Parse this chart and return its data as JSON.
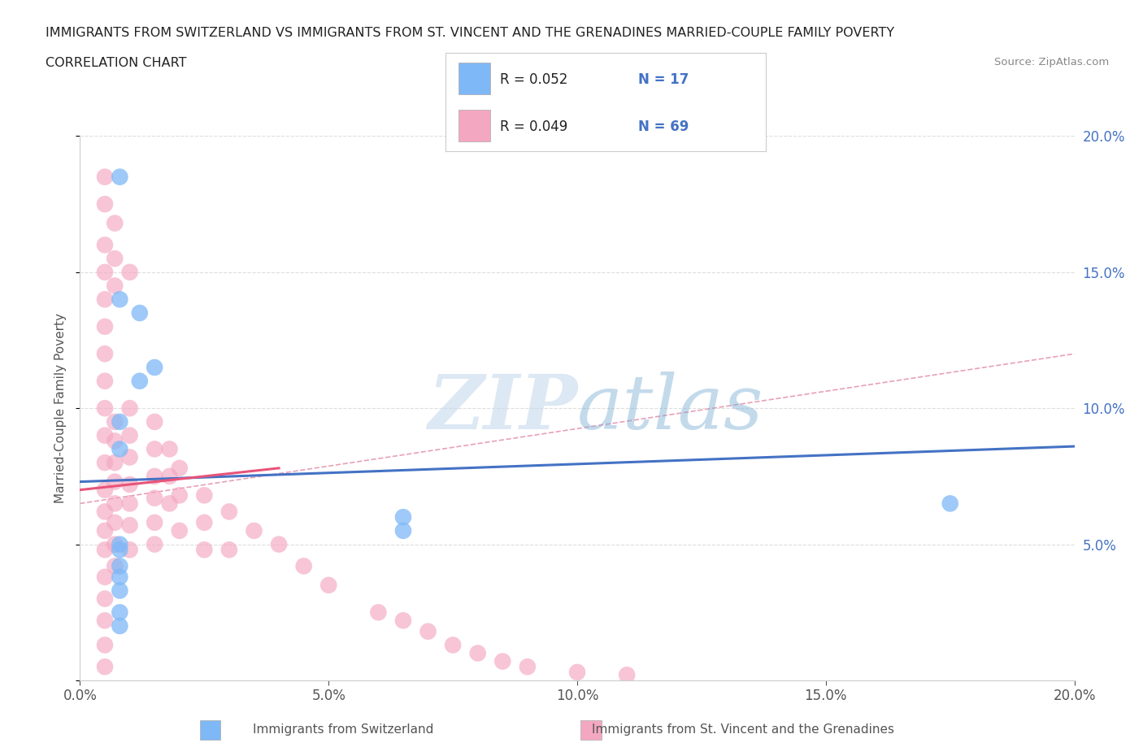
{
  "title_line1": "IMMIGRANTS FROM SWITZERLAND VS IMMIGRANTS FROM ST. VINCENT AND THE GRENADINES MARRIED-COUPLE FAMILY POVERTY",
  "title_line2": "CORRELATION CHART",
  "source_text": "Source: ZipAtlas.com",
  "ylabel": "Married-Couple Family Poverty",
  "xlim": [
    0.0,
    0.2
  ],
  "ylim": [
    0.0,
    0.2
  ],
  "xtick_vals": [
    0.0,
    0.05,
    0.1,
    0.15,
    0.2
  ],
  "xtick_labels": [
    "0.0%",
    "5.0%",
    "10.0%",
    "15.0%",
    "20.0%"
  ],
  "ytick_vals": [
    0.0,
    0.05,
    0.1,
    0.15,
    0.2
  ],
  "ytick_labels": [
    "",
    "5.0%",
    "10.0%",
    "15.0%",
    "20.0%"
  ],
  "color_swiss": "#7EB8F7",
  "color_svgr": "#F4A7C0",
  "color_swiss_line": "#4472c4",
  "color_svgr_line": "#E8547A",
  "color_dashed": "#E8A0B8",
  "color_grid": "#dddddd",
  "watermark_color": "#c5d9ec",
  "swiss_x": [
    0.008,
    0.008,
    0.012,
    0.015,
    0.012,
    0.008,
    0.008,
    0.175,
    0.065,
    0.065,
    0.008,
    0.008,
    0.008,
    0.008,
    0.008,
    0.008,
    0.008
  ],
  "swiss_y": [
    0.185,
    0.14,
    0.135,
    0.115,
    0.11,
    0.095,
    0.085,
    0.065,
    0.06,
    0.055,
    0.05,
    0.048,
    0.042,
    0.038,
    0.033,
    0.025,
    0.02
  ],
  "svgr_x": [
    0.005,
    0.005,
    0.005,
    0.005,
    0.005,
    0.005,
    0.005,
    0.005,
    0.005,
    0.005,
    0.005,
    0.005,
    0.005,
    0.005,
    0.005,
    0.005,
    0.005,
    0.005,
    0.005,
    0.005,
    0.007,
    0.007,
    0.007,
    0.007,
    0.007,
    0.007,
    0.007,
    0.007,
    0.007,
    0.007,
    0.007,
    0.01,
    0.01,
    0.01,
    0.01,
    0.01,
    0.01,
    0.01,
    0.01,
    0.015,
    0.015,
    0.015,
    0.015,
    0.015,
    0.015,
    0.018,
    0.018,
    0.018,
    0.02,
    0.02,
    0.02,
    0.025,
    0.025,
    0.025,
    0.03,
    0.03,
    0.035,
    0.04,
    0.045,
    0.05,
    0.06,
    0.065,
    0.07,
    0.075,
    0.08,
    0.085,
    0.09,
    0.1,
    0.11
  ],
  "svgr_y": [
    0.185,
    0.175,
    0.16,
    0.15,
    0.14,
    0.13,
    0.12,
    0.11,
    0.1,
    0.09,
    0.08,
    0.07,
    0.062,
    0.055,
    0.048,
    0.038,
    0.03,
    0.022,
    0.013,
    0.005,
    0.168,
    0.155,
    0.145,
    0.095,
    0.088,
    0.08,
    0.073,
    0.065,
    0.058,
    0.05,
    0.042,
    0.15,
    0.1,
    0.09,
    0.082,
    0.072,
    0.065,
    0.057,
    0.048,
    0.095,
    0.085,
    0.075,
    0.067,
    0.058,
    0.05,
    0.085,
    0.075,
    0.065,
    0.078,
    0.068,
    0.055,
    0.068,
    0.058,
    0.048,
    0.062,
    0.048,
    0.055,
    0.05,
    0.042,
    0.035,
    0.025,
    0.022,
    0.018,
    0.013,
    0.01,
    0.007,
    0.005,
    0.003,
    0.002
  ],
  "swiss_line_x": [
    0.0,
    0.2
  ],
  "swiss_line_y": [
    0.073,
    0.086
  ],
  "svgr_line_x": [
    0.0,
    0.04
  ],
  "svgr_line_y": [
    0.07,
    0.078
  ],
  "dashed_line_x": [
    0.0,
    0.2
  ],
  "dashed_line_y": [
    0.065,
    0.12
  ],
  "background_color": "#ffffff",
  "title_color": "#222222",
  "tick_color_right": "#4472c4",
  "source_color": "#888888",
  "bottom_legend_color": "#555555"
}
